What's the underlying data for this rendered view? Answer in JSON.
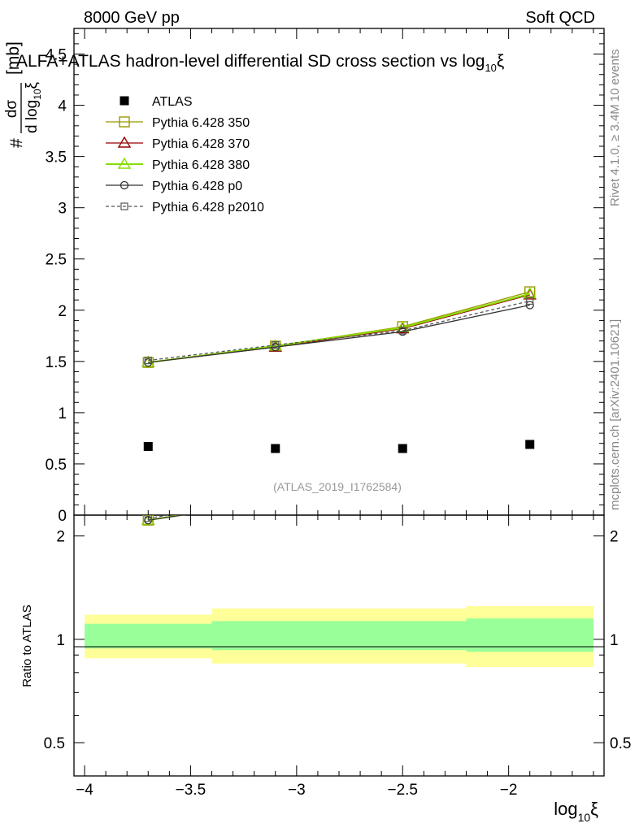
{
  "header": {
    "energy": "8000 GeV pp",
    "process": "Soft QCD",
    "title": "ALFA+ATLAS hadron-level differential SD cross section vs log",
    "title_sub": "10",
    "title_xi": "ξ"
  },
  "side_labels": {
    "rivet_prefix": "Rivet 4.1.0, ≥ 3.4M",
    "rivet_exp": "10",
    "rivet_suffix": "events",
    "mcplots": "mcplots.cern.ch [arXiv:2401.10621]"
  },
  "ref_label": "(ATLAS_2019_I1762584)",
  "y_label": {
    "hash": "#",
    "numerator": "dσ",
    "denominator": "d log",
    "den_sub": "10",
    "den_xi": "ξ",
    "unit": "[mb]"
  },
  "ratio_label": "Ratio to ATLAS",
  "x_label": {
    "main": "log",
    "sub": "10",
    "xi": "ξ"
  },
  "colors": {
    "atlas": "#000000",
    "p350": "#999900",
    "p370": "#990000",
    "p380": "#88dd00",
    "p0": "#333333",
    "p2010": "#555555",
    "band_outer": "#ffff99",
    "band_inner": "#99ff99"
  },
  "chart_data": {
    "type": "scatter",
    "xlabel": "log10ξ",
    "ylabel": "dσ/d log10ξ [mb]",
    "xlim": [
      -4.05,
      -1.55
    ],
    "ylim": [
      0,
      4.75
    ],
    "x_ticks": [
      "−4",
      "−3.5",
      "−3",
      "−2.5",
      "−2"
    ],
    "y_ticks": [
      "0",
      "0.5",
      "1",
      "1.5",
      "2",
      "2.5",
      "3",
      "3.5",
      "4",
      "4.5"
    ],
    "ratio_ylim": [
      0.4,
      2.3
    ],
    "ratio_ticks": [
      "0.5",
      "1",
      "2"
    ],
    "x": [
      -3.7,
      -3.1,
      -2.5,
      -1.9
    ],
    "bin_edges": [
      [
        -4.0,
        -3.4
      ],
      [
        -3.4,
        -2.8
      ],
      [
        -2.8,
        -2.2
      ],
      [
        -2.2,
        -1.6
      ]
    ],
    "atlas": {
      "name": "ATLAS",
      "values": [
        0.67,
        0.65,
        0.65,
        0.69
      ]
    },
    "ratio_bands": {
      "outer_lo": [
        0.88,
        0.85,
        0.85,
        0.83
      ],
      "outer_hi": [
        1.18,
        1.23,
        1.23,
        1.25
      ],
      "inner_lo": [
        0.94,
        0.93,
        0.93,
        0.92
      ],
      "inner_hi": [
        1.11,
        1.13,
        1.13,
        1.15
      ]
    },
    "series": [
      {
        "key": "p350",
        "name": "Pythia 6.428 350",
        "values": [
          1.49,
          1.65,
          1.84,
          2.18
        ],
        "marker": "square-open",
        "dash": ""
      },
      {
        "key": "p370",
        "name": "Pythia 6.428 370",
        "values": [
          1.49,
          1.64,
          1.82,
          2.15
        ],
        "marker": "triangle-open",
        "dash": ""
      },
      {
        "key": "p380",
        "name": "Pythia 6.428 380",
        "values": [
          1.49,
          1.65,
          1.83,
          2.16
        ],
        "marker": "triangle-open",
        "dash": ""
      },
      {
        "key": "p0",
        "name": "Pythia 6.428 p0",
        "values": [
          1.49,
          1.64,
          1.79,
          2.05
        ],
        "marker": "circle-open",
        "dash": ""
      },
      {
        "key": "p2010",
        "name": "Pythia 6.428 p2010",
        "values": [
          1.51,
          1.66,
          1.8,
          2.09
        ],
        "marker": "square-small",
        "dash": "4,3"
      }
    ]
  }
}
